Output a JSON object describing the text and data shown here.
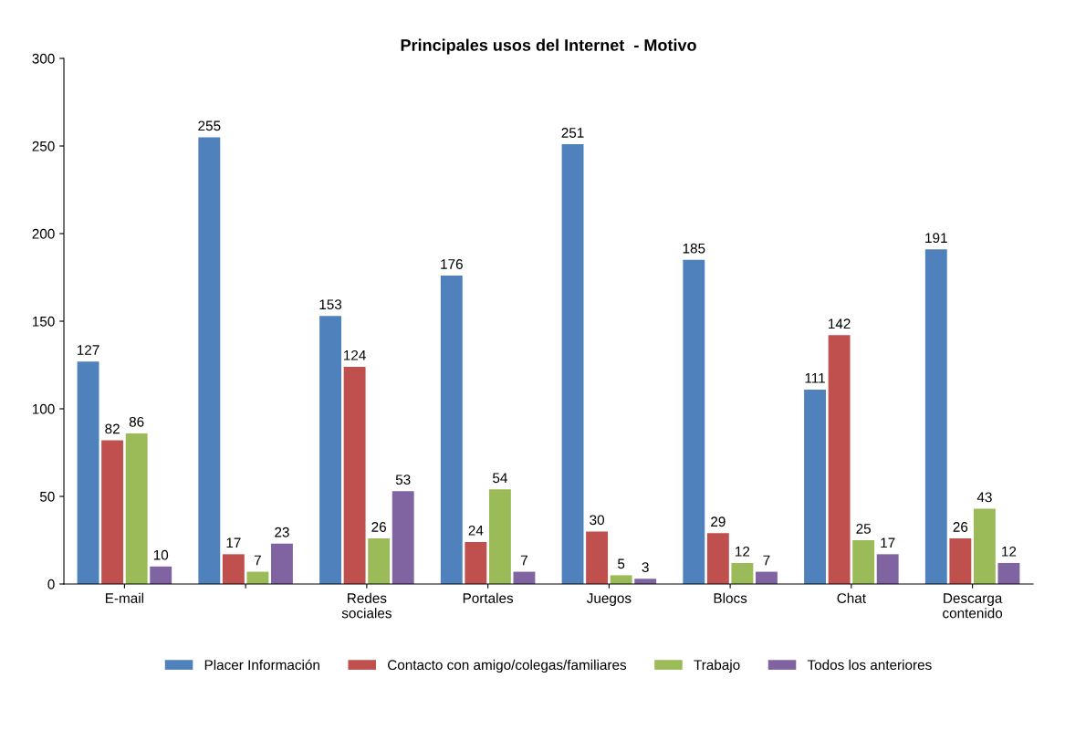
{
  "chart_data": {
    "type": "bar",
    "title": "Principales usos del Internet  - Motivo",
    "categories": [
      "E-mail",
      null,
      "Redes\nsociales",
      "Portales",
      "Juegos",
      "Blocs",
      "Chat",
      "Descarga\ncontenido"
    ],
    "series": [
      {
        "name": "Placer Información",
        "color": "#4f81bd",
        "values": [
          127,
          255,
          153,
          176,
          251,
          185,
          111,
          191
        ]
      },
      {
        "name": "Contacto con amigo/colegas/familiares",
        "color": "#c0504d",
        "values": [
          82,
          17,
          124,
          24,
          30,
          29,
          142,
          26
        ]
      },
      {
        "name": "Trabajo",
        "color": "#9bbb59",
        "values": [
          86,
          7,
          26,
          54,
          5,
          12,
          25,
          43
        ]
      },
      {
        "name": "Todos los anteriores",
        "color": "#8064a2",
        "values": [
          10,
          23,
          53,
          7,
          3,
          7,
          17,
          12
        ]
      }
    ],
    "ylim": [
      0,
      300
    ],
    "yticks": [
      0,
      50,
      100,
      150,
      200,
      250,
      300
    ],
    "grid": false,
    "legend": "bottom",
    "data_labels": true
  }
}
